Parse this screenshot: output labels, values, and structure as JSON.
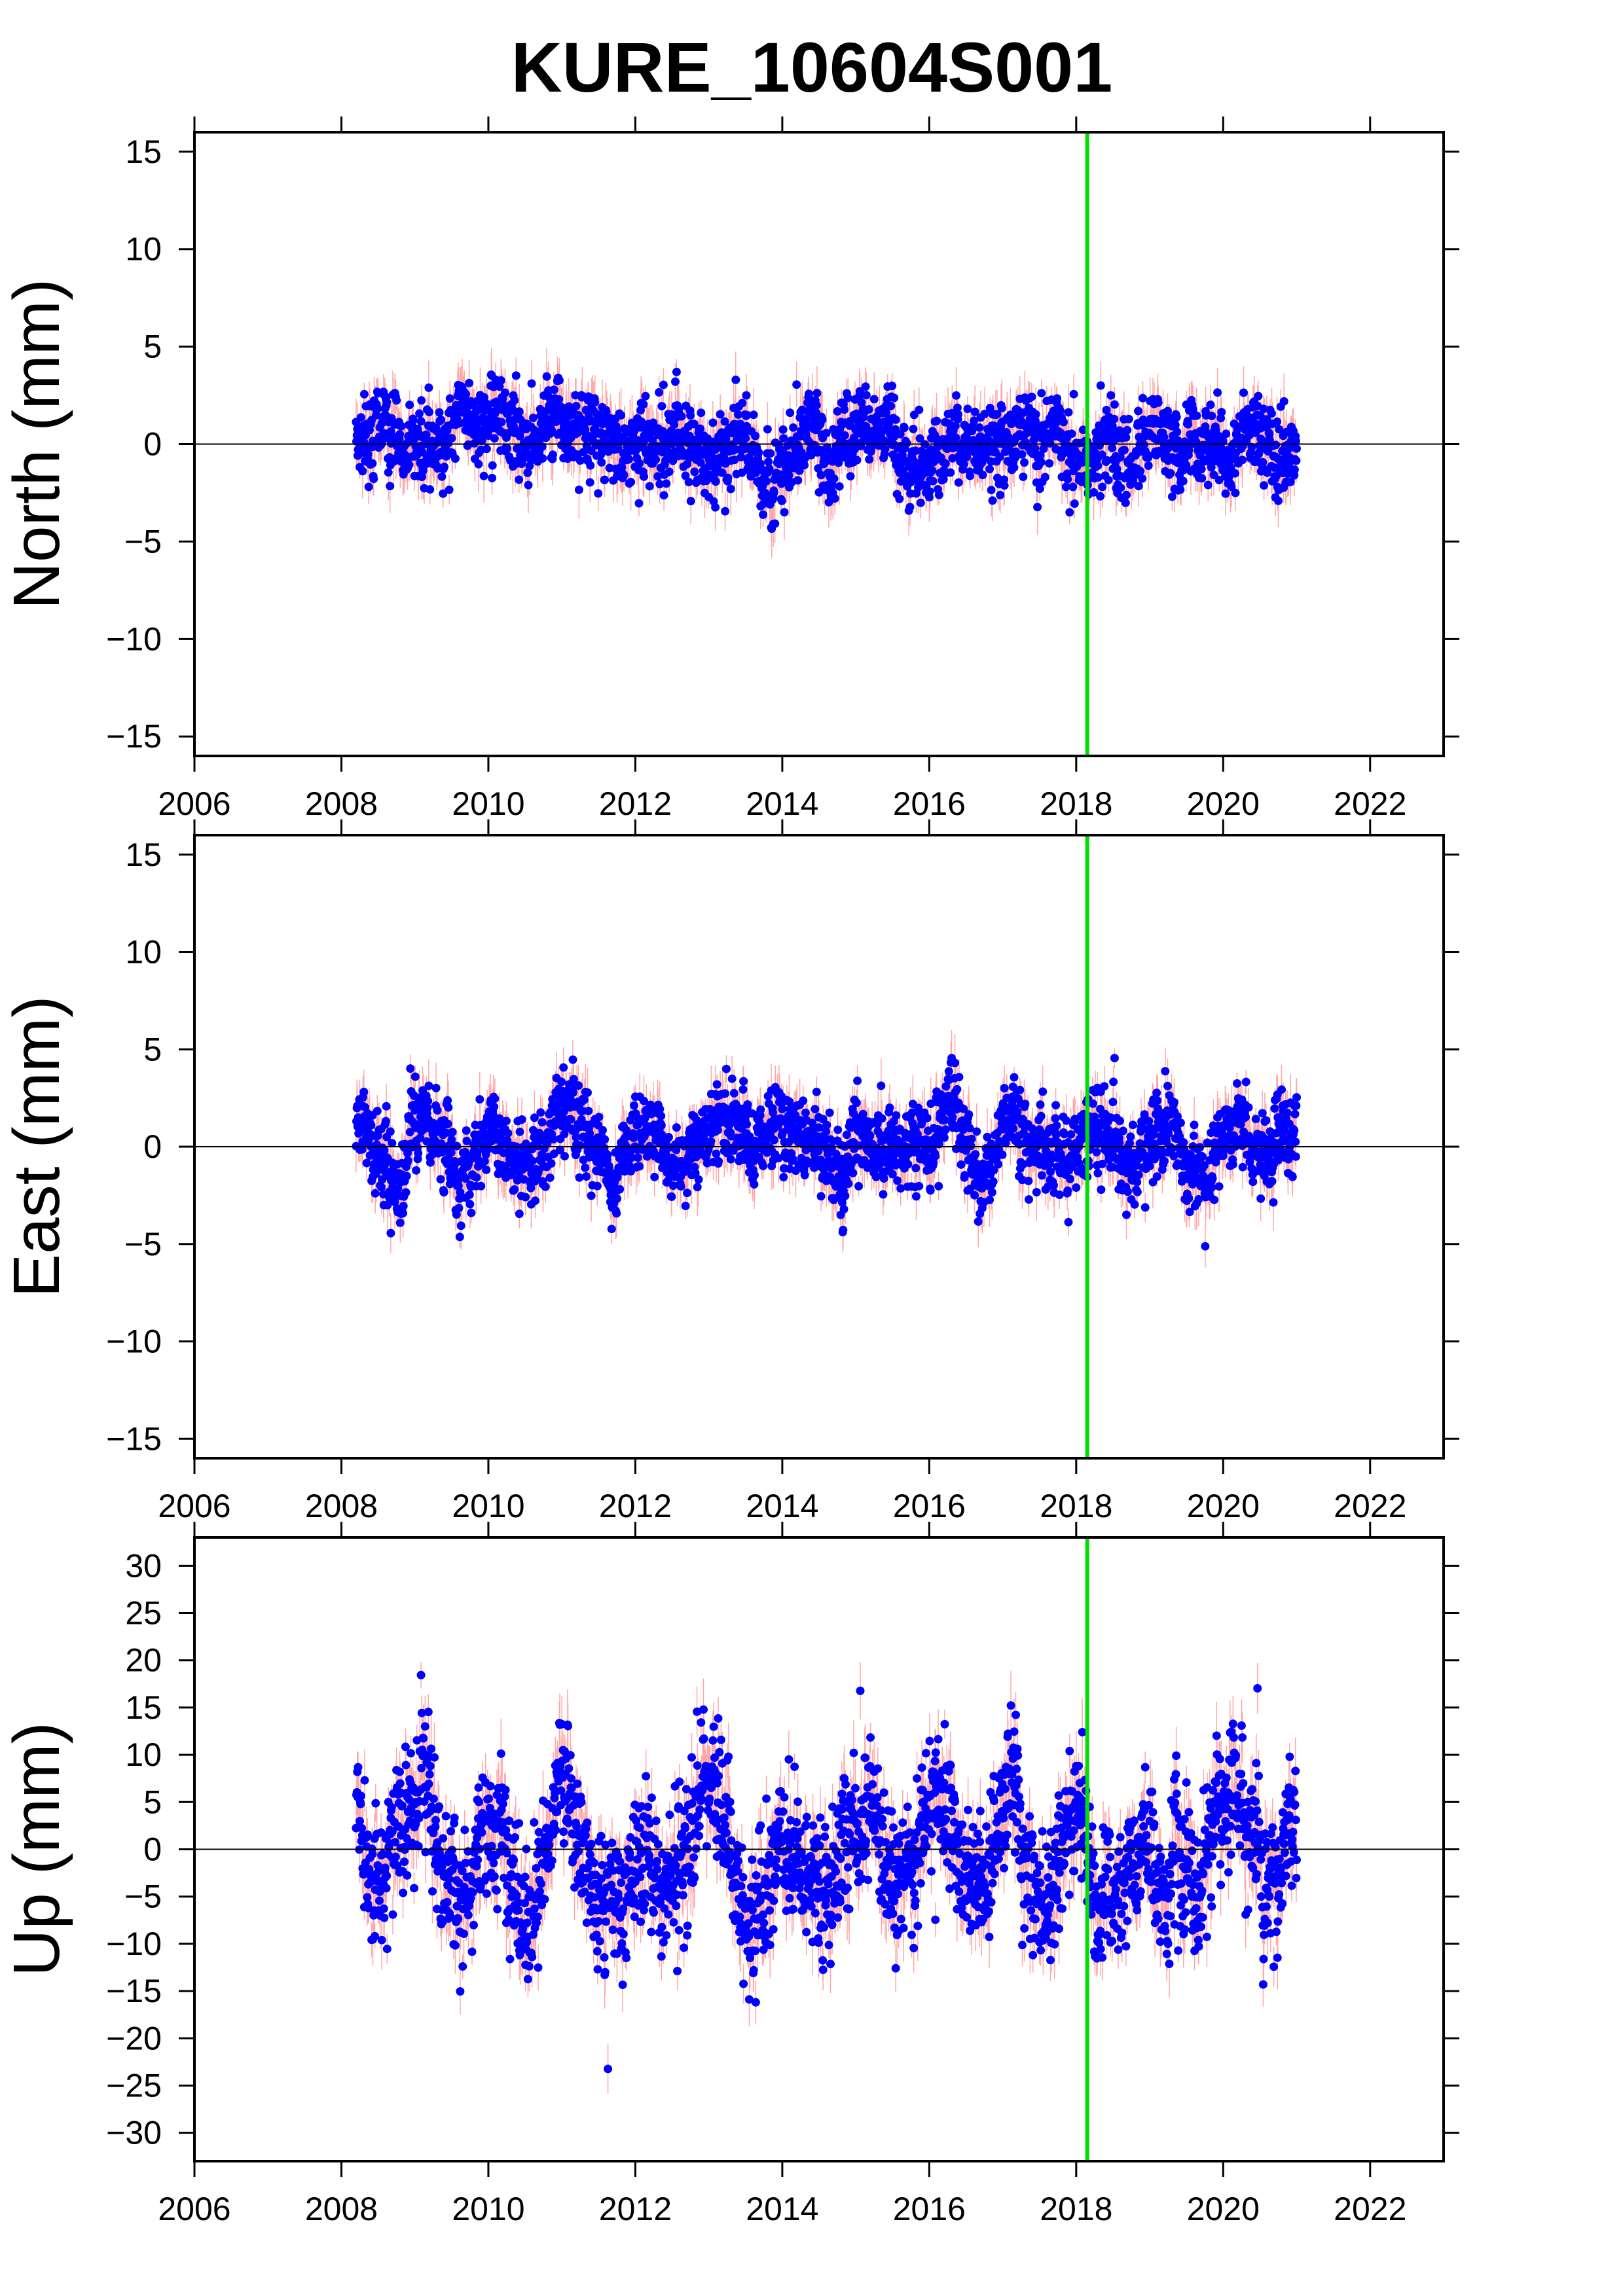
{
  "chart_data": {
    "type": "scatter",
    "title": "KURE_10604S001",
    "x_range": [
      2006,
      2023
    ],
    "x_ticks": [
      2006,
      2008,
      2010,
      2012,
      2014,
      2016,
      2018,
      2020,
      2022
    ],
    "data_span": [
      2008.2,
      2021.0
    ],
    "vertical_marker_x": 2018.15,
    "marker_color": "#00e000",
    "point_color": "#0000ff",
    "errorbar_color": "#ff8080",
    "zero_line": true,
    "grid": false,
    "panels": [
      {
        "ylabel": "North (mm)",
        "ylim": [
          -16,
          16
        ],
        "y_ticks": [
          -15,
          -10,
          -5,
          0,
          5,
          10,
          15
        ],
        "typical_spread_mm": 1.0,
        "typical_error_mm": 1.0,
        "seasonal_amplitude_mm": 0.4
      },
      {
        "ylabel": "East (mm)",
        "ylim": [
          -16,
          16
        ],
        "y_ticks": [
          -15,
          -10,
          -5,
          0,
          5,
          10,
          15
        ],
        "typical_spread_mm": 1.0,
        "typical_error_mm": 1.0,
        "seasonal_amplitude_mm": 1.0
      },
      {
        "ylabel": "Up (mm)",
        "ylim": [
          -33,
          33
        ],
        "y_ticks": [
          -30,
          -25,
          -20,
          -15,
          -10,
          -5,
          0,
          5,
          10,
          15,
          20,
          25,
          30
        ],
        "typical_spread_mm": 3.5,
        "typical_error_mm": 2.5,
        "seasonal_amplitude_mm": 4.0
      }
    ]
  }
}
